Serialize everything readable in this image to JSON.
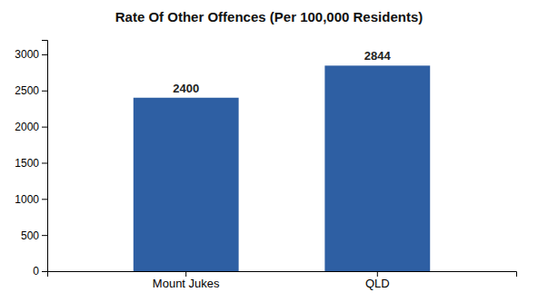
{
  "chart_data": {
    "type": "bar",
    "title": "Rate Of Other Offences (Per 100,000 Residents)",
    "categories": [
      "Mount Jukes",
      "QLD"
    ],
    "values": [
      2400,
      2844
    ],
    "color": "#2e5fa3",
    "ylim": [
      0,
      3200
    ],
    "yticks": [
      0,
      500,
      1000,
      1500,
      2000,
      2500,
      3000
    ],
    "grid": false,
    "data_labels": true
  }
}
